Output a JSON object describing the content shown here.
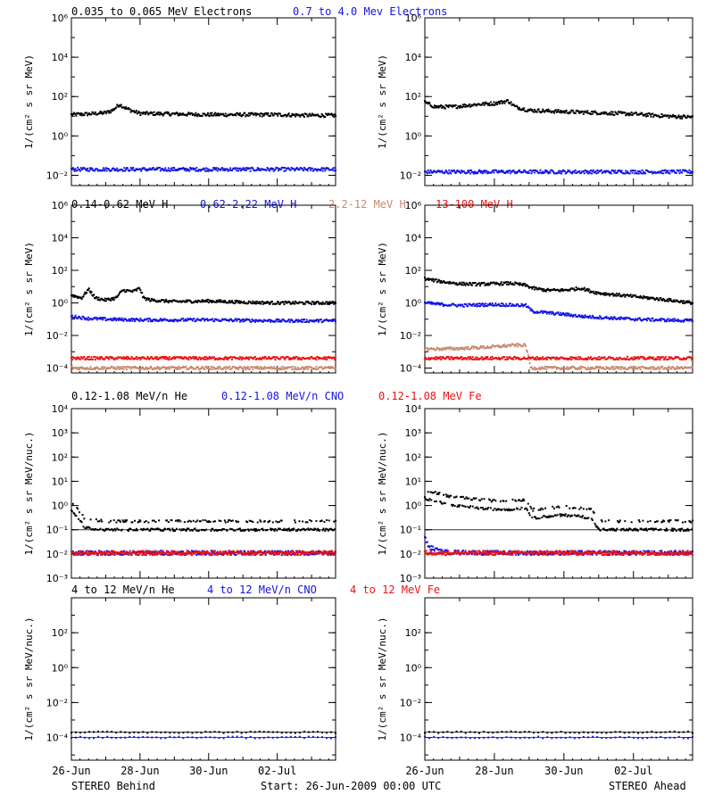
{
  "colors": {
    "black": "#000000",
    "blue": "#1414e6",
    "brown": "#c98a6f",
    "red": "#ee1111"
  },
  "footer": {
    "left": "STEREO Behind",
    "center": "Start: 26-Jun-2009 00:00 UTC",
    "right": "STEREO Ahead"
  },
  "x_ticks": [
    "26-Jun",
    "28-Jun",
    "30-Jun",
    "02-Jul"
  ],
  "rows": [
    {
      "legend": [
        {
          "text": "0.035 to 0.065 MeV Electrons",
          "color": "black"
        },
        {
          "text": "0.7 to 4.0 Mev Electrons",
          "color": "blue"
        }
      ],
      "ylabel": "1/(cm² s sr MeV)"
    },
    {
      "legend": [
        {
          "text": "0.14-0.62 MeV H",
          "color": "black"
        },
        {
          "text": "0.62-2.22 MeV H",
          "color": "blue"
        },
        {
          "text": "2.2-12 MeV H",
          "color": "brown"
        },
        {
          "text": "13-100 MeV H",
          "color": "red"
        }
      ],
      "ylabel": "1/(cm² s sr MeV)"
    },
    {
      "legend": [
        {
          "text": "0.12-1.08 MeV/n He",
          "color": "black"
        },
        {
          "text": "0.12-1.08 MeV/n CNO",
          "color": "blue"
        },
        {
          "text": "0.12-1.08 MeV Fe",
          "color": "red"
        }
      ],
      "ylabel": "1/(cm² s sr MeV/nuc.)"
    },
    {
      "legend": [
        {
          "text": "4 to 12 MeV/n He",
          "color": "black"
        },
        {
          "text": "4 to 12 MeV/n CNO",
          "color": "blue"
        },
        {
          "text": "4 to 12 MeV Fe",
          "color": "red"
        }
      ],
      "ylabel": "1/(cm² s sr MeV/nuc.)"
    }
  ],
  "chart_data": [
    {
      "type": "scatter",
      "panel": "electrons-behind",
      "y_scale": "log",
      "ylim": [
        0.003,
        1000000
      ],
      "xlim": [
        0,
        7.7
      ],
      "y_ticks": [
        {
          "v": 1000000,
          "l": "10⁶"
        },
        {
          "v": 10000,
          "l": "10⁴"
        },
        {
          "v": 100,
          "l": "10²"
        },
        {
          "v": 1,
          "l": "10⁰"
        },
        {
          "v": 0.01,
          "l": "10⁻²"
        }
      ],
      "series": [
        {
          "name": "0.035 to 0.065 MeV Electrons",
          "color": "black",
          "x": [
            0,
            0.5,
            1,
            1.2,
            1.4,
            1.6,
            1.8,
            2,
            3,
            4,
            5,
            6,
            7,
            7.7
          ],
          "y": [
            12,
            13,
            15,
            20,
            40,
            25,
            18,
            14,
            13,
            12,
            12,
            12,
            11,
            11
          ]
        },
        {
          "name": "0.7 to 4.0 Mev Electrons",
          "color": "blue",
          "x": [
            0,
            2,
            4,
            6,
            7.7
          ],
          "y": [
            0.02,
            0.02,
            0.02,
            0.02,
            0.02
          ]
        }
      ]
    },
    {
      "type": "scatter",
      "panel": "electrons-ahead",
      "y_scale": "log",
      "ylim": [
        0.003,
        1000000
      ],
      "xlim": [
        0,
        7.7
      ],
      "y_ticks": [
        {
          "v": 1000000,
          "l": "10⁶"
        },
        {
          "v": 10000,
          "l": "10⁴"
        },
        {
          "v": 100,
          "l": "10²"
        },
        {
          "v": 1,
          "l": "10⁰"
        },
        {
          "v": 0.01,
          "l": "10⁻²"
        }
      ],
      "series": [
        {
          "name": "0.035 to 0.065 MeV Electrons",
          "color": "black",
          "x": [
            0,
            0.3,
            0.8,
            1.5,
            2,
            2.4,
            2.6,
            3,
            4,
            5,
            6,
            7,
            7.7
          ],
          "y": [
            50,
            30,
            30,
            40,
            45,
            60,
            30,
            20,
            17,
            15,
            13,
            10,
            9
          ]
        },
        {
          "name": "0.7 to 4.0 Mev Electrons",
          "color": "blue",
          "x": [
            0,
            2,
            4,
            6,
            7.7
          ],
          "y": [
            0.015,
            0.015,
            0.015,
            0.015,
            0.015
          ]
        }
      ]
    },
    {
      "type": "scatter",
      "panel": "protons-behind",
      "y_scale": "log",
      "ylim": [
        5e-05,
        1000000
      ],
      "xlim": [
        0,
        7.7
      ],
      "y_ticks": [
        {
          "v": 1000000,
          "l": "10⁶"
        },
        {
          "v": 10000,
          "l": "10⁴"
        },
        {
          "v": 100,
          "l": "10²"
        },
        {
          "v": 1,
          "l": "10⁰"
        },
        {
          "v": 0.01,
          "l": "10⁻²"
        },
        {
          "v": 0.0001,
          "l": "10⁻⁴"
        }
      ],
      "series": [
        {
          "name": "0.14-0.62 MeV H",
          "color": "black",
          "x": [
            0,
            0.3,
            0.5,
            0.7,
            1,
            1.3,
            1.5,
            1.8,
            2,
            2.1,
            2.3,
            3,
            4,
            5,
            6,
            7,
            7.7
          ],
          "y": [
            3,
            2,
            7,
            2,
            1.5,
            2,
            6,
            5,
            8,
            2,
            1.5,
            1.2,
            1.3,
            1.1,
            1,
            1,
            1
          ]
        },
        {
          "name": "0.62-2.22 MeV H",
          "color": "blue",
          "x": [
            0,
            0.5,
            1,
            2,
            4,
            6,
            7.7
          ],
          "y": [
            0.15,
            0.11,
            0.1,
            0.09,
            0.09,
            0.08,
            0.08
          ]
        },
        {
          "name": "2.2-12 MeV H",
          "color": "brown",
          "x": [
            0,
            2,
            4,
            6,
            7.7
          ],
          "y": [
            0.0001,
            0.0001,
            0.0001,
            0.0001,
            0.0001
          ]
        },
        {
          "name": "13-100 MeV H",
          "color": "red",
          "x": [
            0,
            2,
            4,
            6,
            7.7
          ],
          "y": [
            0.0004,
            0.0004,
            0.0004,
            0.0004,
            0.0004
          ]
        }
      ]
    },
    {
      "type": "scatter",
      "panel": "protons-ahead",
      "y_scale": "log",
      "ylim": [
        5e-05,
        1000000
      ],
      "xlim": [
        0,
        7.7
      ],
      "y_ticks": [
        {
          "v": 1000000,
          "l": "10⁶"
        },
        {
          "v": 10000,
          "l": "10⁴"
        },
        {
          "v": 100,
          "l": "10²"
        },
        {
          "v": 1,
          "l": "10⁰"
        },
        {
          "v": 0.01,
          "l": "10⁻²"
        },
        {
          "v": 0.0001,
          "l": "10⁻⁴"
        }
      ],
      "series": [
        {
          "name": "0.14-0.62 MeV H",
          "color": "black",
          "x": [
            0,
            0.5,
            1,
            1.5,
            2,
            2.5,
            2.9,
            3.1,
            3.5,
            4,
            4.5,
            4.8,
            5,
            6,
            7,
            7.7
          ],
          "y": [
            30,
            20,
            15,
            14,
            15,
            16,
            12,
            8,
            6,
            6,
            8,
            5,
            4,
            2.5,
            1.5,
            1
          ]
        },
        {
          "name": "0.62-2.22 MeV H",
          "color": "blue",
          "x": [
            0,
            0.5,
            1,
            2,
            2.9,
            3.1,
            3.5,
            4,
            4.5,
            5,
            6,
            7.7
          ],
          "y": [
            1,
            0.8,
            0.7,
            0.8,
            0.7,
            0.3,
            0.25,
            0.2,
            0.15,
            0.13,
            0.1,
            0.08
          ]
        },
        {
          "name": "2.2-12 MeV H",
          "color": "brown",
          "x": [
            0,
            0.5,
            1,
            1.5,
            2,
            2.5,
            2.9,
            3.05,
            4,
            6,
            7.7
          ],
          "y": [
            0.0015,
            0.0015,
            0.0016,
            0.0018,
            0.002,
            0.0025,
            0.0025,
            0.0001,
            0.0001,
            0.0001,
            0.0001
          ]
        },
        {
          "name": "13-100 MeV H",
          "color": "red",
          "x": [
            0,
            2,
            4,
            6,
            7.7
          ],
          "y": [
            0.0004,
            0.0004,
            0.0004,
            0.0004,
            0.0004
          ]
        }
      ]
    },
    {
      "type": "scatter",
      "panel": "ions-behind",
      "y_scale": "log",
      "ylim": [
        0.001,
        10000
      ],
      "xlim": [
        0,
        7.7
      ],
      "y_ticks": [
        {
          "v": 10000,
          "l": "10⁴"
        },
        {
          "v": 1000,
          "l": "10³"
        },
        {
          "v": 100,
          "l": "10²"
        },
        {
          "v": 10,
          "l": "10¹"
        },
        {
          "v": 1,
          "l": "10⁰"
        },
        {
          "v": 0.1,
          "l": "10⁻¹"
        },
        {
          "v": 0.01,
          "l": "10⁻²"
        },
        {
          "v": 0.001,
          "l": "10⁻³"
        }
      ],
      "series": [
        {
          "name": "0.12-1.08 MeV/n He",
          "color": "black",
          "x": [
            0,
            0.2,
            0.4,
            1,
            2,
            3,
            4,
            5,
            6,
            7,
            7.7
          ],
          "y": [
            0.6,
            0.3,
            0.12,
            0.1,
            0.1,
            0.1,
            0.1,
            0.1,
            0.1,
            0.1,
            0.1
          ]
        },
        {
          "name": "0.12-1.08 MeV/n CNO",
          "color": "blue",
          "x": [
            0,
            2,
            4,
            6,
            7.7
          ],
          "y": [
            0.011,
            0.011,
            0.011,
            0.011,
            0.011
          ]
        },
        {
          "name": "0.12-1.08 MeV Fe",
          "color": "red",
          "x": [
            0,
            2,
            4,
            6,
            7.7
          ],
          "y": [
            0.011,
            0.011,
            0.011,
            0.011,
            0.011
          ]
        }
      ]
    },
    {
      "type": "scatter",
      "panel": "ions-ahead",
      "y_scale": "log",
      "ylim": [
        0.001,
        10000
      ],
      "xlim": [
        0,
        7.7
      ],
      "y_ticks": [
        {
          "v": 10000,
          "l": "10⁴"
        },
        {
          "v": 1000,
          "l": "10³"
        },
        {
          "v": 100,
          "l": "10²"
        },
        {
          "v": 10,
          "l": "10¹"
        },
        {
          "v": 1,
          "l": "10⁰"
        },
        {
          "v": 0.1,
          "l": "10⁻¹"
        },
        {
          "v": 0.01,
          "l": "10⁻²"
        },
        {
          "v": 0.001,
          "l": "10⁻³"
        }
      ],
      "series": [
        {
          "name": "0.12-1.08 MeV/n He",
          "color": "black",
          "x": [
            0,
            0.3,
            0.8,
            1.5,
            2,
            2.5,
            2.9,
            3.1,
            3.5,
            4,
            4.5,
            4.8,
            5,
            6,
            7,
            7.7
          ],
          "y": [
            2,
            1.5,
            1,
            0.8,
            0.7,
            0.7,
            0.8,
            0.3,
            0.35,
            0.4,
            0.35,
            0.3,
            0.1,
            0.1,
            0.1,
            0.1
          ]
        },
        {
          "name": "0.12-1.08 MeV/n CNO",
          "color": "blue",
          "x": [
            0,
            0.1,
            0.5,
            2,
            4,
            6,
            7.7
          ],
          "y": [
            0.05,
            0.02,
            0.012,
            0.011,
            0.011,
            0.011,
            0.011
          ]
        },
        {
          "name": "0.12-1.08 MeV Fe",
          "color": "red",
          "x": [
            0,
            2,
            4,
            6,
            7.7
          ],
          "y": [
            0.011,
            0.011,
            0.011,
            0.011,
            0.011
          ]
        }
      ]
    },
    {
      "type": "scatter",
      "panel": "highions-behind",
      "y_scale": "log",
      "ylim": [
        5e-06,
        10000
      ],
      "xlim": [
        0,
        7.7
      ],
      "y_ticks": [
        {
          "v": 100,
          "l": "10²"
        },
        {
          "v": 1,
          "l": "10⁰"
        },
        {
          "v": 0.01,
          "l": "10⁻²"
        },
        {
          "v": 0.0001,
          "l": "10⁻⁴"
        }
      ],
      "series": [
        {
          "name": "4 to 12 MeV/n He",
          "color": "black",
          "x": [
            0,
            1,
            2,
            3,
            4,
            5,
            6,
            7,
            7.7
          ],
          "y": [
            0.0002,
            0.0002,
            0.0002,
            0.0002,
            0.0002,
            0.0002,
            0.0002,
            0.0002,
            0.0002
          ]
        },
        {
          "name": "4 to 12 MeV/n CNO",
          "color": "blue",
          "x": [
            0,
            2,
            4,
            6,
            7.7
          ],
          "y": [
            0.0001,
            0.0001,
            0.0001,
            0.0001,
            0.0001
          ]
        },
        {
          "name": "4 to 12 MeV Fe",
          "color": "red",
          "x": [],
          "y": []
        }
      ]
    },
    {
      "type": "scatter",
      "panel": "highions-ahead",
      "y_scale": "log",
      "ylim": [
        5e-06,
        10000
      ],
      "xlim": [
        0,
        7.7
      ],
      "y_ticks": [
        {
          "v": 100,
          "l": "10²"
        },
        {
          "v": 1,
          "l": "10⁰"
        },
        {
          "v": 0.01,
          "l": "10⁻²"
        },
        {
          "v": 0.0001,
          "l": "10⁻⁴"
        }
      ],
      "series": [
        {
          "name": "4 to 12 MeV/n He",
          "color": "black",
          "x": [
            0,
            1,
            2,
            3,
            4,
            5,
            6,
            7,
            7.7
          ],
          "y": [
            0.0002,
            0.0002,
            0.0002,
            0.0002,
            0.0002,
            0.0002,
            0.0002,
            0.0002,
            0.0002
          ]
        },
        {
          "name": "4 to 12 MeV/n CNO",
          "color": "blue",
          "x": [
            0,
            2,
            4,
            6,
            7.7
          ],
          "y": [
            0.0001,
            0.0001,
            0.0001,
            0.0001,
            0.0001
          ]
        },
        {
          "name": "4 to 12 MeV Fe",
          "color": "red",
          "x": [],
          "y": []
        }
      ]
    }
  ]
}
